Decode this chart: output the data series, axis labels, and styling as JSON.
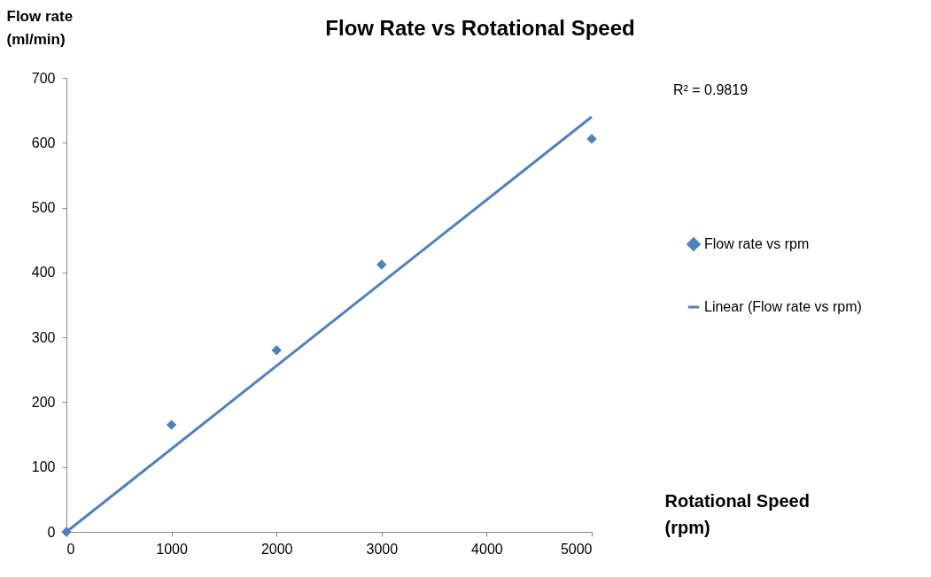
{
  "chart_data": {
    "type": "scatter",
    "title": "Flow Rate vs Rotational Speed",
    "xlabel": "Rotational Speed (rpm)",
    "ylabel": "Flow rate (ml/min)",
    "xlim": [
      0,
      5000
    ],
    "xticks": [
      0,
      1000,
      2000,
      3000,
      4000,
      5000
    ],
    "ylim": [
      0,
      700
    ],
    "yticks": [
      0,
      100,
      200,
      300,
      400,
      500,
      600,
      700
    ],
    "grid": false,
    "legend": "right",
    "line_style": "solid",
    "annotations": [
      "R² = 0.9819"
    ],
    "series": [
      {
        "name": "Flow rate vs rpm",
        "marker": "diamond",
        "color": "#4f81bd",
        "x": [
          0,
          1000,
          2000,
          3000,
          5000
        ],
        "values": [
          0,
          165,
          280,
          412,
          606
        ]
      },
      {
        "name": "Linear (Flow rate vs rpm)",
        "type": "line",
        "marker": "none",
        "color": "#4f81bd",
        "x": [
          0,
          5000
        ],
        "values": [
          0,
          640
        ]
      }
    ]
  }
}
